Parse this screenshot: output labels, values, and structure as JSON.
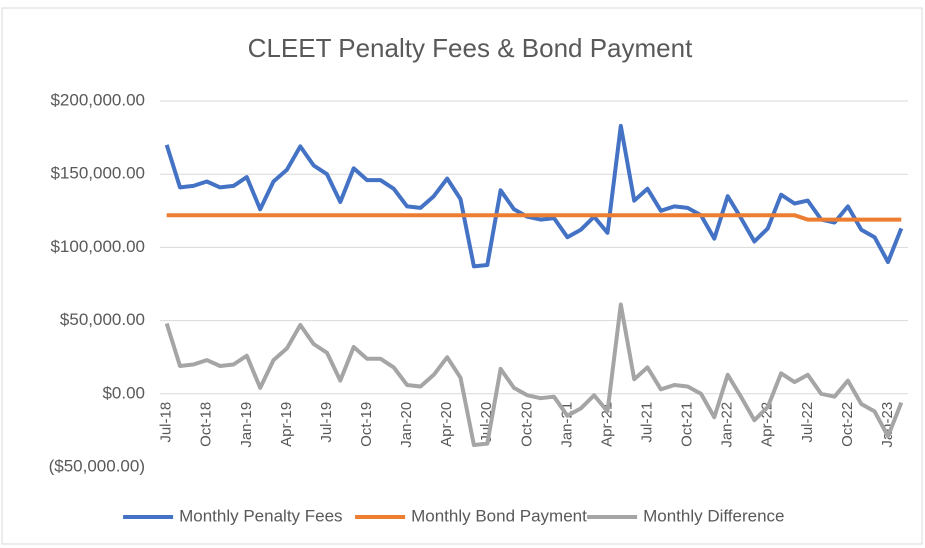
{
  "chart_data": {
    "type": "line",
    "title": "CLEET Penalty Fees & Bond Payment",
    "categories": [
      "Jul-18",
      null,
      null,
      "Oct-18",
      null,
      null,
      "Jan-19",
      null,
      null,
      "Apr-19",
      null,
      null,
      "Jul-19",
      null,
      null,
      "Oct-19",
      null,
      null,
      "Jan-20",
      null,
      null,
      "Apr-20",
      null,
      null,
      "Jul-20",
      null,
      null,
      "Oct-20",
      null,
      null,
      "Jan-21",
      null,
      null,
      "Apr-21",
      null,
      null,
      "Jul-21",
      null,
      null,
      "Oct-21",
      null,
      null,
      "Jan-22",
      null,
      null,
      "Apr-22",
      null,
      null,
      "Jul-22",
      null,
      null,
      "Oct-22",
      null,
      null,
      "Jan-23",
      null
    ],
    "series": [
      {
        "name": "Monthly Penalty Fees",
        "color": "#4472c4",
        "values": [
          170000,
          141000,
          142000,
          145000,
          141000,
          142000,
          148000,
          126000,
          145000,
          153000,
          169000,
          156000,
          150000,
          131000,
          154000,
          146000,
          146000,
          140000,
          128000,
          127000,
          135000,
          147000,
          133000,
          87000,
          88000,
          139000,
          126000,
          121000,
          119000,
          120000,
          107000,
          112000,
          121000,
          110000,
          183000,
          132000,
          140000,
          125000,
          128000,
          127000,
          122000,
          106000,
          135000,
          120000,
          104000,
          113000,
          136000,
          130000,
          132000,
          119000,
          117000,
          128000,
          112000,
          107000,
          90000,
          113000
        ]
      },
      {
        "name": "Monthly Bond Payment",
        "color": "#ed7d31",
        "values": [
          122000,
          122000,
          122000,
          122000,
          122000,
          122000,
          122000,
          122000,
          122000,
          122000,
          122000,
          122000,
          122000,
          122000,
          122000,
          122000,
          122000,
          122000,
          122000,
          122000,
          122000,
          122000,
          122000,
          122000,
          122000,
          122000,
          122000,
          122000,
          122000,
          122000,
          122000,
          122000,
          122000,
          122000,
          122000,
          122000,
          122000,
          122000,
          122000,
          122000,
          122000,
          122000,
          122000,
          122000,
          122000,
          122000,
          122000,
          122000,
          119000,
          119000,
          119000,
          119000,
          119000,
          119000,
          119000,
          119000
        ]
      },
      {
        "name": "Monthly Difference",
        "color": "#a5a5a5",
        "values": [
          48000,
          19000,
          20000,
          23000,
          19000,
          20000,
          26000,
          4000,
          23000,
          31000,
          47000,
          34000,
          28000,
          9000,
          32000,
          24000,
          24000,
          18000,
          6000,
          5000,
          13000,
          25000,
          11000,
          -35000,
          -34000,
          17000,
          4000,
          -1000,
          -3000,
          -2000,
          -15000,
          -10000,
          -1000,
          -12000,
          61000,
          10000,
          18000,
          3000,
          6000,
          5000,
          0,
          -16000,
          13000,
          -2000,
          -18000,
          -9000,
          14000,
          8000,
          13000,
          0,
          -2000,
          9000,
          -7000,
          -12000,
          -29000,
          -6000
        ]
      }
    ],
    "ylim": [
      -50000,
      200000
    ],
    "yticks": [
      {
        "value": -50000,
        "label": "($50,000.00)"
      },
      {
        "value": 0,
        "label": "$0.00"
      },
      {
        "value": 50000,
        "label": "$50,000.00"
      },
      {
        "value": 100000,
        "label": "$100,000.00"
      },
      {
        "value": 150000,
        "label": "$150,000.00"
      },
      {
        "value": 200000,
        "label": "$200,000.00"
      }
    ],
    "negative_tick_color": "#ff0000",
    "grid": true,
    "legend": "bottom"
  }
}
